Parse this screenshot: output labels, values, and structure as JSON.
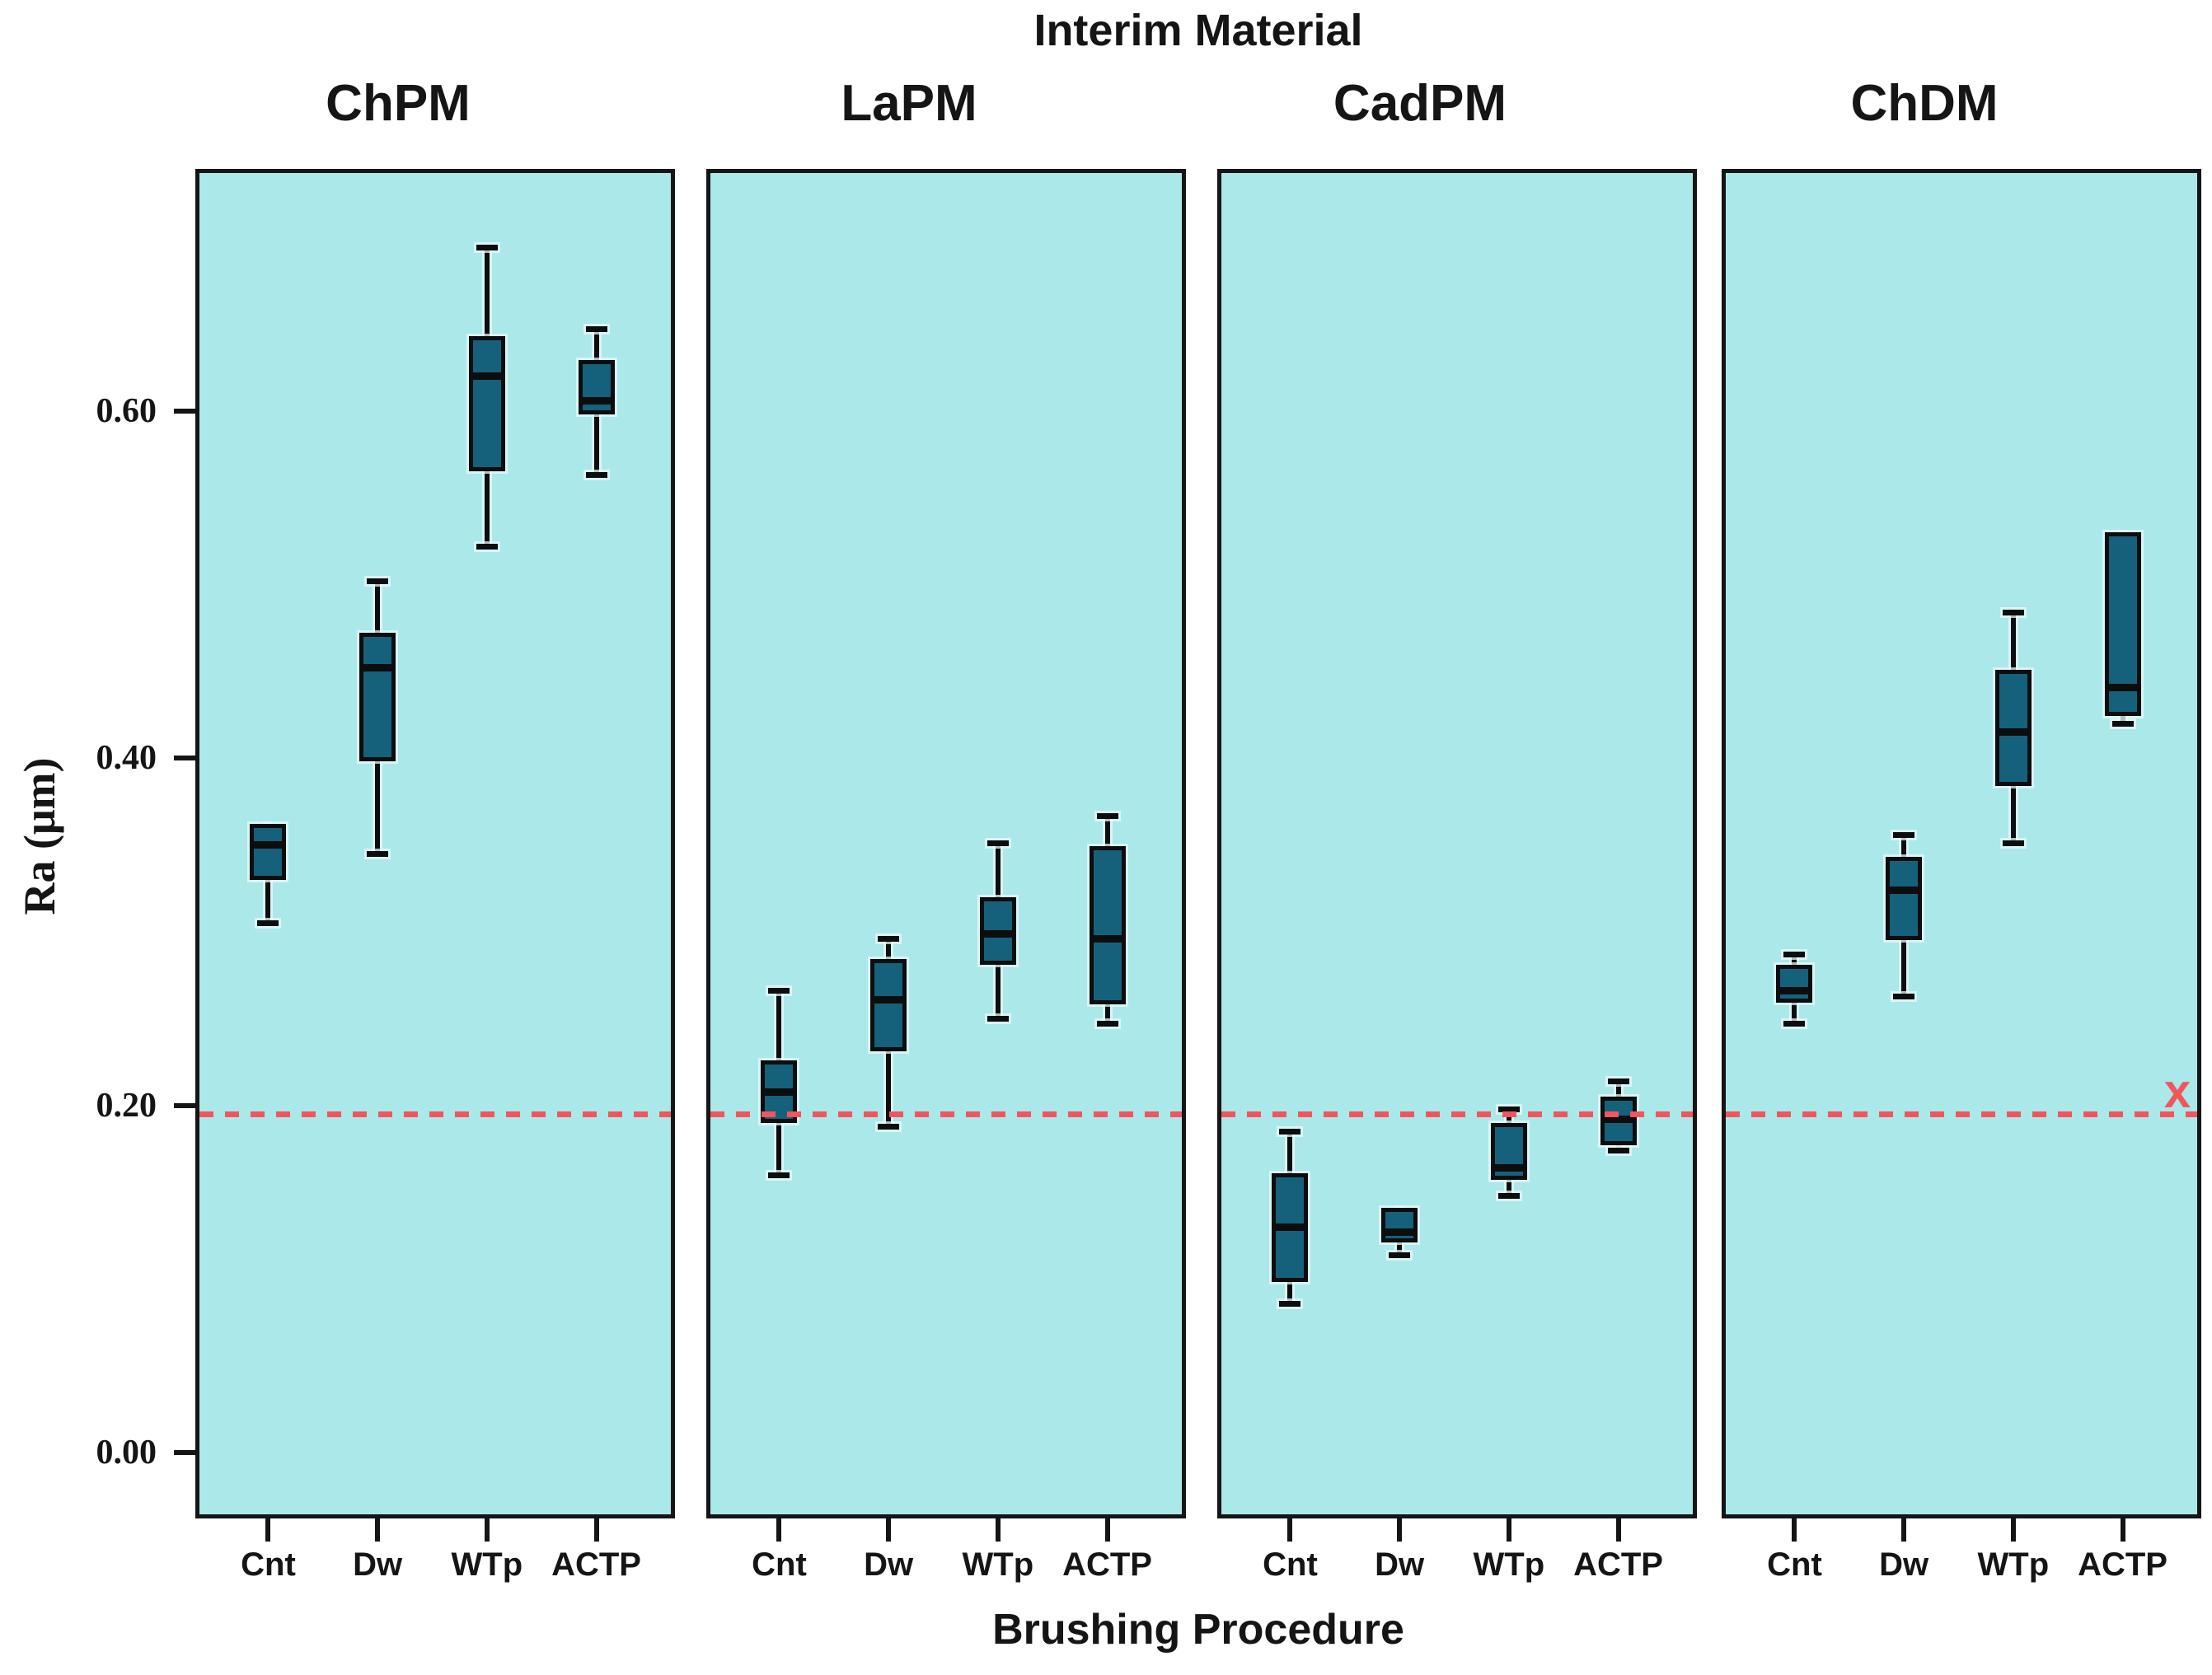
{
  "chart_data": {
    "type": "boxplot",
    "title": "Interim Material",
    "xlabel": "Brushing Procedure",
    "ylabel": "Ra (μm)",
    "ylim": [
      -0.038,
      0.739
    ],
    "ytick_values": [
      0.6,
      0.4,
      0.2,
      0.0
    ],
    "ytick_labels": [
      "0.60",
      "0.40",
      "0.20",
      "0.00"
    ],
    "categories": [
      "Cnt",
      "Dw",
      "WTp",
      "ACTP"
    ],
    "grid": false,
    "legend": "none",
    "reference_line": {
      "value": 0.195,
      "style": "dashed",
      "color": "#f2555b"
    },
    "annotation_marker": {
      "text": "x",
      "value": 0.207,
      "panel": "ChDM",
      "position": "right-edge",
      "color": "#f2555b"
    },
    "panels": [
      {
        "label": "ChPM",
        "boxes": [
          {
            "category": "Cnt",
            "whislo": 0.305,
            "q1": 0.33,
            "med": 0.35,
            "q3": 0.362,
            "whishi": 0.362
          },
          {
            "category": "Dw",
            "whislo": 0.345,
            "q1": 0.398,
            "med": 0.452,
            "q3": 0.472,
            "whishi": 0.502
          },
          {
            "category": "WTp",
            "whislo": 0.522,
            "q1": 0.565,
            "med": 0.62,
            "q3": 0.643,
            "whishi": 0.694
          },
          {
            "category": "ACTP",
            "whislo": 0.563,
            "q1": 0.598,
            "med": 0.606,
            "q3": 0.629,
            "whishi": 0.647
          }
        ]
      },
      {
        "label": "LaPM",
        "boxes": [
          {
            "category": "Cnt",
            "whislo": 0.16,
            "q1": 0.19,
            "med": 0.208,
            "q3": 0.226,
            "whishi": 0.266
          },
          {
            "category": "Dw",
            "whislo": 0.188,
            "q1": 0.231,
            "med": 0.261,
            "q3": 0.284,
            "whishi": 0.296
          },
          {
            "category": "WTp",
            "whislo": 0.25,
            "q1": 0.281,
            "med": 0.299,
            "q3": 0.32,
            "whishi": 0.351
          },
          {
            "category": "ACTP",
            "whislo": 0.247,
            "q1": 0.258,
            "med": 0.296,
            "q3": 0.349,
            "whishi": 0.367
          }
        ]
      },
      {
        "label": "CadPM",
        "boxes": [
          {
            "category": "Cnt",
            "whislo": 0.086,
            "q1": 0.098,
            "med": 0.13,
            "q3": 0.161,
            "whishi": 0.185
          },
          {
            "category": "Dw",
            "whislo": 0.114,
            "q1": 0.121,
            "med": 0.127,
            "q3": 0.141,
            "whishi": 0.141
          },
          {
            "category": "WTp",
            "whislo": 0.148,
            "q1": 0.157,
            "med": 0.164,
            "q3": 0.19,
            "whishi": 0.198
          },
          {
            "category": "ACTP",
            "whislo": 0.174,
            "q1": 0.177,
            "med": 0.192,
            "q3": 0.205,
            "whishi": 0.214
          }
        ]
      },
      {
        "label": "ChDM",
        "boxes": [
          {
            "category": "Cnt",
            "whislo": 0.247,
            "q1": 0.259,
            "med": 0.266,
            "q3": 0.281,
            "whishi": 0.287
          },
          {
            "category": "Dw",
            "whislo": 0.263,
            "q1": 0.295,
            "med": 0.324,
            "q3": 0.343,
            "whishi": 0.356
          },
          {
            "category": "WTp",
            "whislo": 0.351,
            "q1": 0.384,
            "med": 0.415,
            "q3": 0.451,
            "whishi": 0.484
          },
          {
            "category": "ACTP",
            "whislo": 0.42,
            "q1": 0.424,
            "med": 0.441,
            "q3": 0.53,
            "whishi": 0.53
          }
        ]
      }
    ],
    "colors": {
      "panel_background": "#abe8e9",
      "box_fill": "#15617c",
      "box_border": "#0d0d0d",
      "reference_line": "#f2555b",
      "text": "#151515",
      "figure_background": "#ffffff"
    }
  }
}
